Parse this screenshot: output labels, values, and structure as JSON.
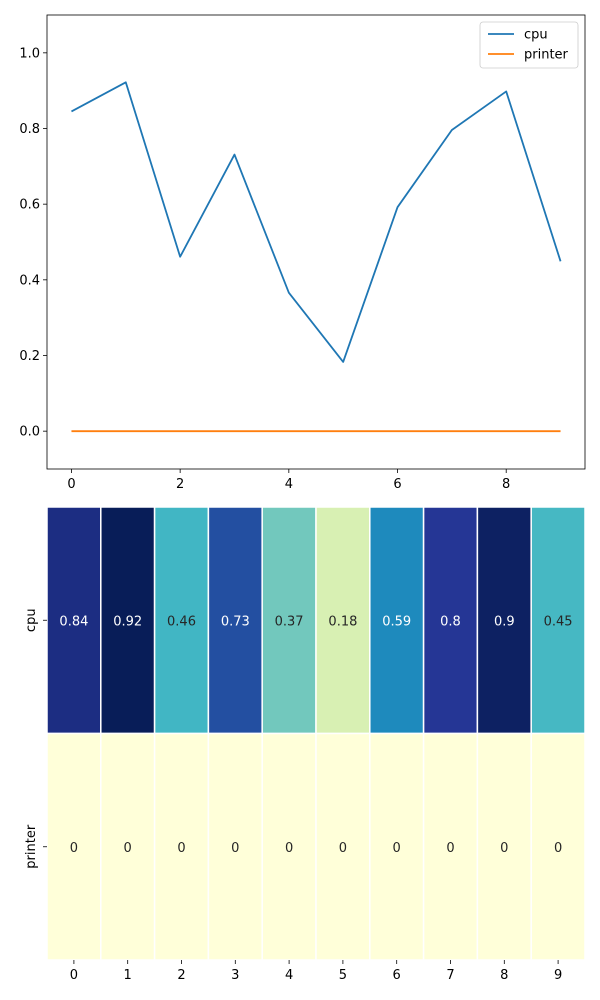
{
  "chart_data": [
    {
      "type": "line",
      "x": [
        0,
        1,
        2,
        3,
        4,
        5,
        6,
        7,
        8,
        9
      ],
      "series": [
        {
          "name": "cpu",
          "color": "#1f77b4",
          "values": [
            0.845,
            0.922,
            0.461,
            0.731,
            0.366,
            0.183,
            0.592,
            0.796,
            0.898,
            0.449
          ]
        },
        {
          "name": "printer",
          "color": "#ff7f0e",
          "values": [
            0,
            0,
            0,
            0,
            0,
            0,
            0,
            0,
            0,
            0
          ]
        }
      ],
      "xlim": [
        -0.45,
        9.45
      ],
      "ylim": [
        -0.1,
        1.1
      ],
      "xticks": [
        0,
        2,
        4,
        6,
        8
      ],
      "yticks": [
        "0.0",
        "0.2",
        "0.4",
        "0.6",
        "0.8",
        "1.0"
      ],
      "legend": "top-right",
      "grid": false
    },
    {
      "type": "heatmap",
      "colormap": "YlGnBu",
      "columns": [
        "0",
        "1",
        "2",
        "3",
        "4",
        "5",
        "6",
        "7",
        "8",
        "9"
      ],
      "rows": [
        "cpu",
        "printer"
      ],
      "values": [
        [
          0.84,
          0.92,
          0.46,
          0.73,
          0.37,
          0.18,
          0.59,
          0.8,
          0.9,
          0.45
        ],
        [
          0,
          0,
          0,
          0,
          0,
          0,
          0,
          0,
          0,
          0
        ]
      ],
      "labels": [
        [
          "0.84",
          "0.92",
          "0.46",
          "0.73",
          "0.37",
          "0.18",
          "0.59",
          "0.8",
          "0.9",
          "0.45"
        ],
        [
          "0",
          "0",
          "0",
          "0",
          "0",
          "0",
          "0",
          "0",
          "0",
          "0"
        ]
      ]
    }
  ]
}
